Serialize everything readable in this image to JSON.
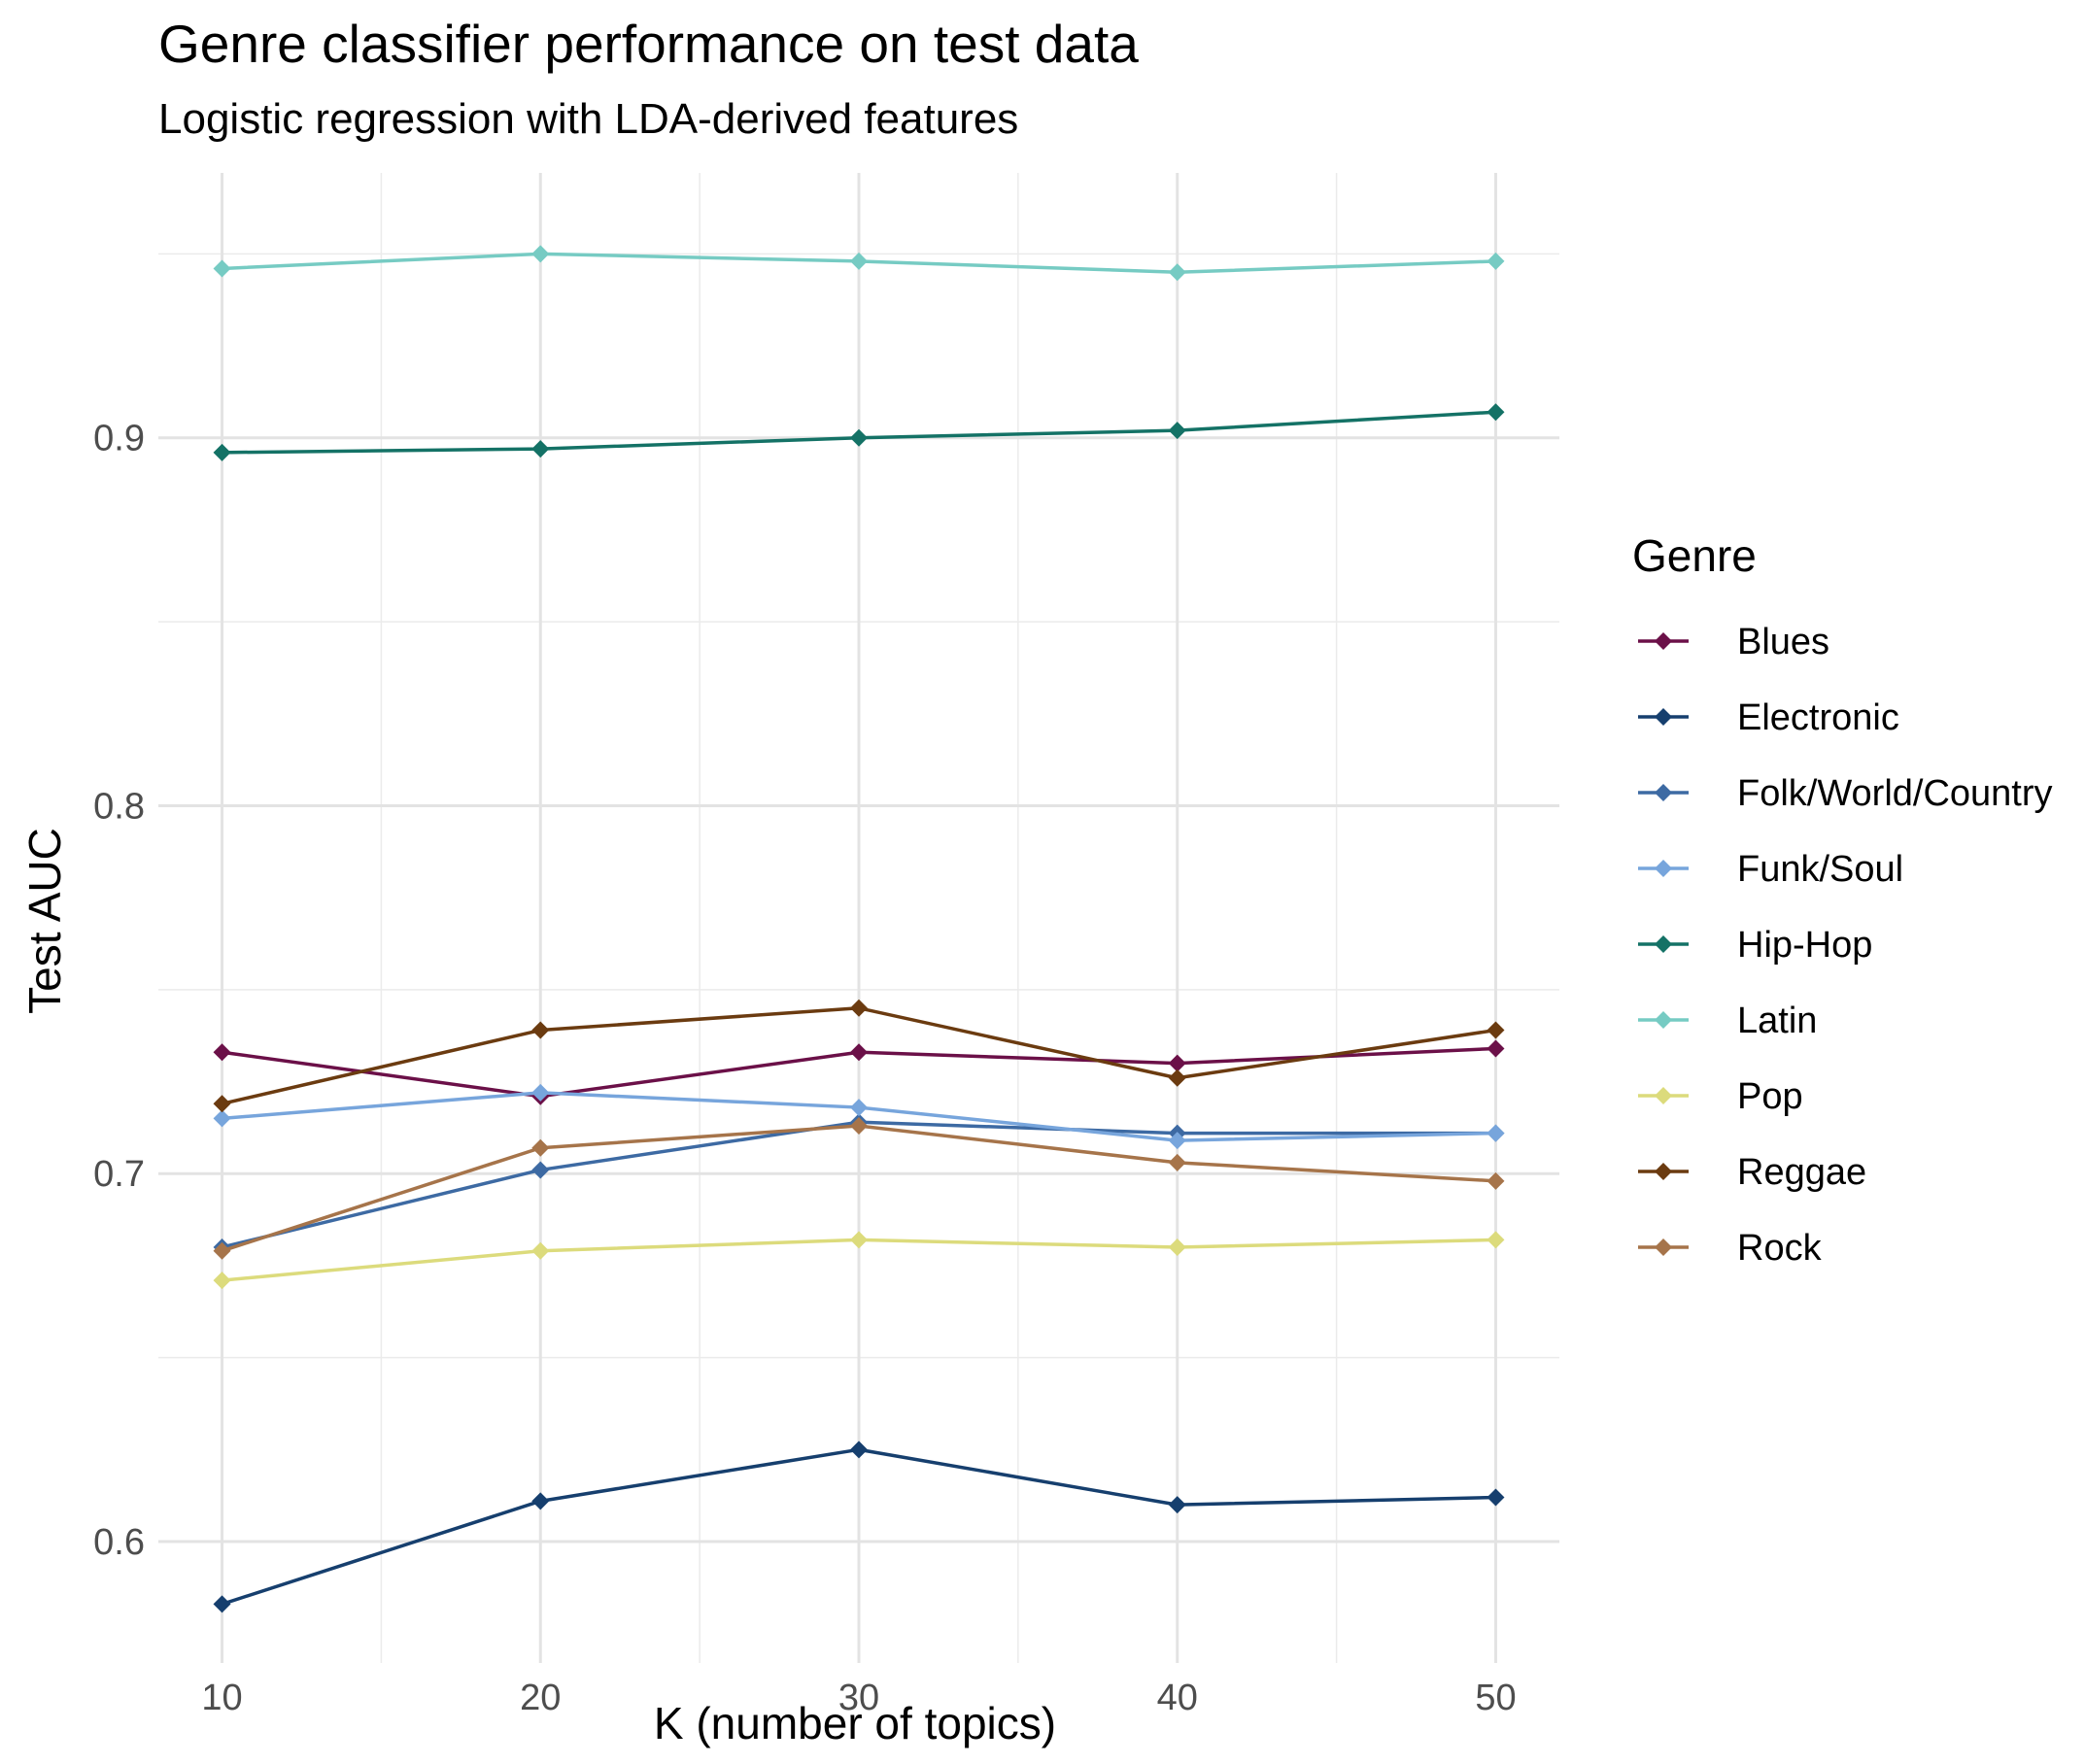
{
  "chart_data": {
    "type": "line",
    "title": "Genre classifier performance on test data",
    "subtitle": "Logistic regression with LDA-derived features",
    "xlabel": "K (number of topics)",
    "ylabel": "Test AUC",
    "x": [
      10,
      20,
      30,
      40,
      50
    ],
    "x_ticks": [
      "10",
      "20",
      "30",
      "40",
      "50"
    ],
    "y_ticks": [
      "0.6",
      "0.7",
      "0.8",
      "0.9"
    ],
    "xlim": [
      8,
      52
    ],
    "ylim": [
      0.567,
      0.972
    ],
    "grid": true,
    "legend_title": "Genre",
    "legend_position": "right",
    "series": [
      {
        "name": "Blues",
        "color": "#6b1048",
        "values": [
          0.733,
          0.721,
          0.733,
          0.73,
          0.734
        ]
      },
      {
        "name": "Electronic",
        "color": "#163f6e",
        "values": [
          0.583,
          0.611,
          0.625,
          0.61,
          0.612
        ]
      },
      {
        "name": "Folk/World/Country",
        "color": "#3d6aa3",
        "values": [
          0.68,
          0.701,
          0.714,
          0.711,
          0.711
        ]
      },
      {
        "name": "Funk/Soul",
        "color": "#77a5dc",
        "values": [
          0.715,
          0.722,
          0.718,
          0.709,
          0.711
        ]
      },
      {
        "name": "Hip-Hop",
        "color": "#147266",
        "values": [
          0.896,
          0.897,
          0.9,
          0.902,
          0.907
        ]
      },
      {
        "name": "Latin",
        "color": "#76cbc3",
        "values": [
          0.946,
          0.95,
          0.948,
          0.945,
          0.948
        ]
      },
      {
        "name": "Pop",
        "color": "#dcdb7c",
        "values": [
          0.671,
          0.679,
          0.682,
          0.68,
          0.682
        ]
      },
      {
        "name": "Reggae",
        "color": "#6b3b10",
        "values": [
          0.719,
          0.739,
          0.745,
          0.726,
          0.739
        ]
      },
      {
        "name": "Rock",
        "color": "#a6744a",
        "values": [
          0.679,
          0.707,
          0.713,
          0.703,
          0.698
        ]
      }
    ]
  }
}
